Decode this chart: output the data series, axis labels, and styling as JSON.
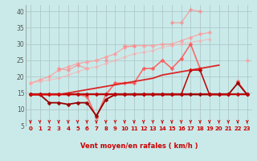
{
  "title": "",
  "xlabel": "Vent moyen/en rafales ( km/h )",
  "background_color": "#caeaea",
  "grid_color": "#b0c8c8",
  "x": [
    0,
    1,
    2,
    3,
    4,
    5,
    6,
    7,
    8,
    9,
    10,
    11,
    12,
    13,
    14,
    15,
    16,
    17,
    18,
    19,
    20,
    21,
    22,
    23
  ],
  "series": [
    {
      "color": "#ff9999",
      "alpha": 0.75,
      "y": [
        18.0,
        19.0,
        20.0,
        22.0,
        23.0,
        24.0,
        24.5,
        25.0,
        26.0,
        27.0,
        29.0,
        29.5,
        29.5,
        29.5,
        30.0,
        30.0,
        31.0,
        32.0,
        33.0,
        33.5,
        null,
        null,
        null,
        25.0
      ],
      "marker": "D",
      "markersize": 2.5,
      "linewidth": 1.0,
      "connect_all": false
    },
    {
      "color": "#ff8888",
      "alpha": 0.65,
      "y": [
        null,
        null,
        null,
        22.5,
        22.0,
        23.5,
        22.5,
        null,
        25.0,
        null,
        29.5,
        29.5,
        null,
        null,
        null,
        36.5,
        36.5,
        40.5,
        40.0,
        null,
        null,
        null,
        null,
        null
      ],
      "marker": "D",
      "markersize": 2.5,
      "linewidth": 1.0,
      "connect_all": false
    },
    {
      "color": "#ffaaaa",
      "alpha": 0.6,
      "y": [
        18.0,
        18.5,
        19.0,
        19.5,
        20.5,
        21.5,
        22.5,
        23.0,
        24.0,
        25.0,
        26.0,
        27.0,
        27.5,
        28.0,
        29.0,
        29.5,
        30.0,
        30.5,
        31.0,
        31.5,
        null,
        null,
        null,
        25.0
      ],
      "marker": "D",
      "markersize": 2.0,
      "linewidth": 0.9,
      "connect_all": false
    },
    {
      "color": "#ff5555",
      "alpha": 0.85,
      "y": [
        14.5,
        14.5,
        14.5,
        14.5,
        14.5,
        14.5,
        14.0,
        7.5,
        14.5,
        18.0,
        18.0,
        18.0,
        22.5,
        22.5,
        25.0,
        22.5,
        25.5,
        30.0,
        22.5,
        null,
        null,
        null,
        18.5,
        14.5
      ],
      "marker": "D",
      "markersize": 2.5,
      "linewidth": 1.2,
      "connect_all": false
    },
    {
      "color": "#cc0000",
      "alpha": 1.0,
      "y": [
        14.5,
        14.5,
        14.5,
        14.5,
        14.5,
        14.5,
        14.5,
        14.5,
        14.5,
        14.5,
        14.5,
        14.5,
        14.5,
        14.5,
        14.5,
        14.5,
        14.5,
        14.5,
        14.5,
        14.5,
        14.5,
        14.5,
        14.5,
        14.5
      ],
      "marker": null,
      "markersize": 0,
      "linewidth": 1.3,
      "connect_all": true
    },
    {
      "color": "#990000",
      "alpha": 1.0,
      "y": [
        14.5,
        14.5,
        12.0,
        12.0,
        11.5,
        12.0,
        12.0,
        8.0,
        13.0,
        14.5,
        14.5,
        14.5,
        14.5,
        14.5,
        14.5,
        14.5,
        14.5,
        14.5,
        14.5,
        14.5,
        14.5,
        14.5,
        18.0,
        14.5
      ],
      "marker": "D",
      "markersize": 2.5,
      "linewidth": 1.3,
      "connect_all": true
    },
    {
      "color": "#bb0000",
      "alpha": 1.0,
      "y": [
        14.5,
        14.5,
        14.5,
        14.5,
        14.5,
        14.5,
        14.5,
        14.5,
        14.5,
        14.5,
        14.5,
        14.5,
        14.5,
        14.5,
        14.5,
        14.5,
        14.5,
        22.0,
        22.0,
        14.5,
        14.5,
        14.5,
        14.5,
        14.5
      ],
      "marker": "D",
      "markersize": 2.5,
      "linewidth": 1.1,
      "connect_all": true
    },
    {
      "color": "#dd1111",
      "alpha": 0.9,
      "y": [
        14.5,
        14.5,
        14.5,
        14.5,
        15.0,
        15.5,
        16.0,
        16.5,
        17.0,
        17.5,
        18.0,
        18.5,
        19.0,
        19.5,
        20.5,
        21.0,
        21.5,
        22.0,
        22.5,
        23.0,
        23.5,
        null,
        null,
        null
      ],
      "marker": null,
      "markersize": 0,
      "linewidth": 1.3,
      "connect_all": false
    }
  ],
  "xlim": [
    -0.5,
    23.5
  ],
  "ylim": [
    5,
    42
  ],
  "yticks": [
    5,
    10,
    15,
    20,
    25,
    30,
    35,
    40
  ],
  "xticks": [
    0,
    1,
    2,
    3,
    4,
    5,
    6,
    7,
    8,
    9,
    10,
    11,
    12,
    13,
    14,
    15,
    16,
    17,
    18,
    19,
    20,
    21,
    22,
    23
  ],
  "arrow_color": "#cc0000"
}
